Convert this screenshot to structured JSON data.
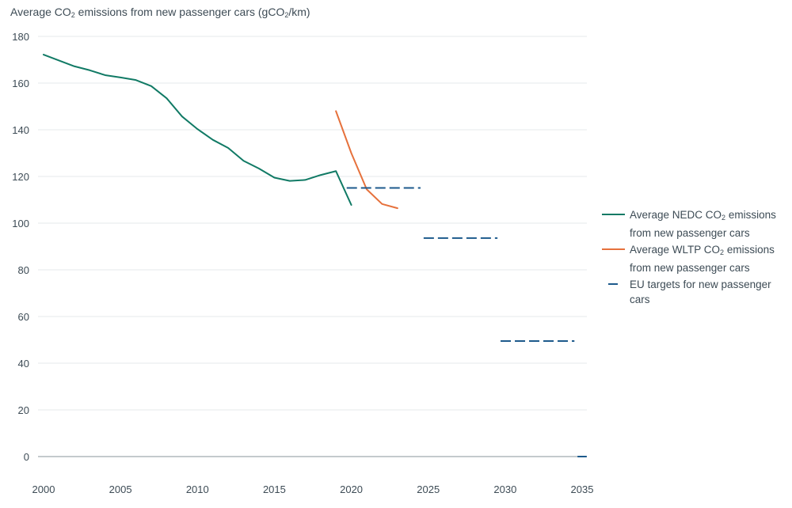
{
  "chart_data": {
    "type": "line",
    "title_parts": [
      "Average CO",
      "2",
      " emissions from new passenger cars (gCO",
      "2",
      "/km)"
    ],
    "ylim": [
      0,
      180
    ],
    "xlim": [
      2000,
      2035
    ],
    "y_ticks": [
      "0",
      "20",
      "40",
      "60",
      "80",
      "100",
      "120",
      "140",
      "160",
      "180"
    ],
    "x_ticks": [
      "2000",
      "2005",
      "2010",
      "2015",
      "2020",
      "2025",
      "2030",
      "2035"
    ],
    "grid": "horizontal",
    "legend_position": "right",
    "series": [
      {
        "legend_parts": [
          "Average NEDC CO",
          "2",
          " emissions from new passenger cars"
        ],
        "color": "#117a65",
        "style": "solid",
        "x": [
          2000,
          2001,
          2002,
          2003,
          2004,
          2005,
          2006,
          2007,
          2008,
          2009,
          2010,
          2011,
          2012,
          2013,
          2014,
          2015,
          2016,
          2017,
          2018,
          2019,
          2020
        ],
        "y": [
          172.2,
          169.7,
          167.2,
          165.5,
          163.4,
          162.4,
          161.3,
          158.7,
          153.5,
          145.7,
          140.3,
          135.7,
          132.2,
          126.7,
          123.4,
          119.5,
          118.1,
          118.5,
          120.6,
          122.3,
          107.8
        ]
      },
      {
        "legend_parts": [
          "Average WLTP CO",
          "2",
          " emissions from new passenger cars"
        ],
        "color": "#e6713c",
        "style": "solid",
        "x": [
          2019,
          2020,
          2021,
          2022,
          2023
        ],
        "y": [
          148.0,
          130.0,
          114.5,
          108.2,
          106.4
        ]
      },
      {
        "legend_parts": [
          "EU targets for new passenger cars"
        ],
        "color": "#1d5a8c",
        "style": "dashed",
        "segments": [
          {
            "x": [
              2019.7,
              2024.5
            ],
            "y": [
              115.1,
              115.1
            ]
          },
          {
            "x": [
              2024.7,
              2029.5
            ],
            "y": [
              93.6,
              93.6
            ]
          },
          {
            "x": [
              2029.7,
              2034.5
            ],
            "y": [
              49.5,
              49.5
            ]
          },
          {
            "x": [
              2034.7,
              2035.3
            ],
            "y": [
              0,
              0
            ]
          }
        ]
      }
    ]
  }
}
